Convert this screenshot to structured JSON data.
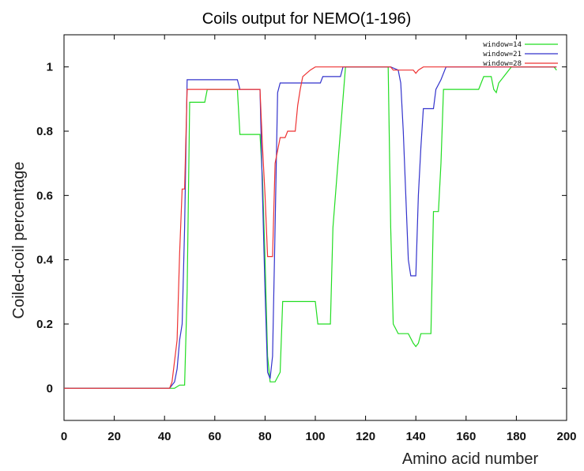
{
  "chart_data": {
    "type": "line",
    "title": "Coils output for NEMO(1-196)",
    "xlabel": "Amino acid number",
    "ylabel": "Coiled-coil percentage",
    "xlim": [
      0,
      200
    ],
    "ylim": [
      -0.1,
      1.1
    ],
    "xticks": [
      "0",
      "20",
      "40",
      "60",
      "80",
      "100",
      "120",
      "140",
      "160",
      "180",
      "200"
    ],
    "yticks": [
      "0",
      "0.2",
      "0.4",
      "0.6",
      "0.8",
      "1"
    ],
    "grid": false,
    "legend_position": "top-right",
    "series": [
      {
        "name": "window=14",
        "color": "#22dd22",
        "points": [
          [
            0,
            0
          ],
          [
            42,
            0
          ],
          [
            44,
            0
          ],
          [
            46,
            0.01
          ],
          [
            48,
            0.01
          ],
          [
            49,
            0.3
          ],
          [
            50,
            0.89
          ],
          [
            56,
            0.89
          ],
          [
            57,
            0.93
          ],
          [
            69,
            0.93
          ],
          [
            70,
            0.79
          ],
          [
            78,
            0.79
          ],
          [
            79,
            0.65
          ],
          [
            80,
            0.4
          ],
          [
            81,
            0.1
          ],
          [
            82,
            0.02
          ],
          [
            84,
            0.02
          ],
          [
            86,
            0.05
          ],
          [
            87,
            0.27
          ],
          [
            100,
            0.27
          ],
          [
            101,
            0.2
          ],
          [
            106,
            0.2
          ],
          [
            107,
            0.5
          ],
          [
            109,
            0.7
          ],
          [
            111,
            0.9
          ],
          [
            112,
            1
          ],
          [
            129,
            1
          ],
          [
            130,
            0.5
          ],
          [
            131,
            0.2
          ],
          [
            133,
            0.17
          ],
          [
            137,
            0.17
          ],
          [
            139,
            0.14
          ],
          [
            140,
            0.13
          ],
          [
            141,
            0.14
          ],
          [
            142,
            0.17
          ],
          [
            146,
            0.17
          ],
          [
            147,
            0.55
          ],
          [
            149,
            0.55
          ],
          [
            150,
            0.7
          ],
          [
            151,
            0.93
          ],
          [
            165,
            0.93
          ],
          [
            167,
            0.97
          ],
          [
            170,
            0.97
          ],
          [
            171,
            0.93
          ],
          [
            172,
            0.92
          ],
          [
            173,
            0.95
          ],
          [
            175,
            0.97
          ],
          [
            178,
            1
          ],
          [
            195,
            1
          ],
          [
            196,
            0.99
          ]
        ]
      },
      {
        "name": "window=21",
        "color": "#3333cc",
        "points": [
          [
            0,
            0
          ],
          [
            42,
            0
          ],
          [
            44,
            0.02
          ],
          [
            45,
            0.06
          ],
          [
            46,
            0.15
          ],
          [
            47,
            0.2
          ],
          [
            48,
            0.5
          ],
          [
            49,
            0.96
          ],
          [
            69,
            0.96
          ],
          [
            70,
            0.93
          ],
          [
            78,
            0.93
          ],
          [
            79,
            0.6
          ],
          [
            80,
            0.3
          ],
          [
            81,
            0.05
          ],
          [
            82,
            0.03
          ],
          [
            83,
            0.1
          ],
          [
            84,
            0.5
          ],
          [
            85,
            0.92
          ],
          [
            86,
            0.95
          ],
          [
            94,
            0.95
          ],
          [
            102,
            0.95
          ],
          [
            103,
            0.97
          ],
          [
            110,
            0.97
          ],
          [
            111,
            1
          ],
          [
            130,
            1
          ],
          [
            133,
            0.99
          ],
          [
            134,
            0.95
          ],
          [
            135,
            0.8
          ],
          [
            136,
            0.6
          ],
          [
            137,
            0.4
          ],
          [
            138,
            0.35
          ],
          [
            140,
            0.35
          ],
          [
            141,
            0.6
          ],
          [
            142,
            0.75
          ],
          [
            143,
            0.87
          ],
          [
            147,
            0.87
          ],
          [
            148,
            0.93
          ],
          [
            150,
            0.96
          ],
          [
            152,
            1
          ],
          [
            175,
            1
          ],
          [
            196,
            1
          ]
        ]
      },
      {
        "name": "window=28",
        "color": "#ee3333",
        "points": [
          [
            0,
            0
          ],
          [
            42,
            0
          ],
          [
            43,
            0.02
          ],
          [
            45,
            0.15
          ],
          [
            46,
            0.42
          ],
          [
            47,
            0.62
          ],
          [
            48,
            0.62
          ],
          [
            49,
            0.93
          ],
          [
            78,
            0.93
          ],
          [
            79,
            0.75
          ],
          [
            80,
            0.6
          ],
          [
            81,
            0.41
          ],
          [
            83,
            0.41
          ],
          [
            84,
            0.7
          ],
          [
            86,
            0.78
          ],
          [
            88,
            0.78
          ],
          [
            89,
            0.8
          ],
          [
            92,
            0.8
          ],
          [
            93,
            0.88
          ],
          [
            94,
            0.93
          ],
          [
            95,
            0.97
          ],
          [
            98,
            0.99
          ],
          [
            100,
            1
          ],
          [
            130,
            1
          ],
          [
            131,
            0.99
          ],
          [
            139,
            0.99
          ],
          [
            140,
            0.98
          ],
          [
            141,
            0.99
          ],
          [
            143,
            1
          ],
          [
            196,
            1
          ]
        ]
      }
    ]
  }
}
